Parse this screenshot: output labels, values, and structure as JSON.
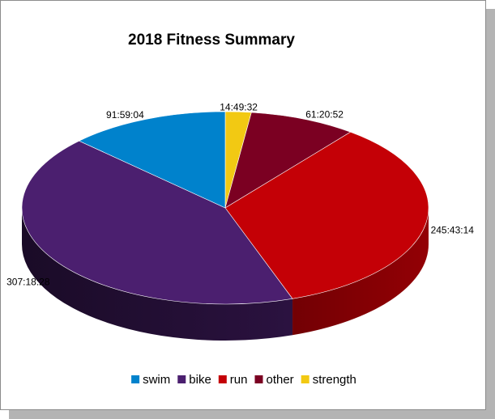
{
  "chart_data": {
    "type": "pie",
    "style": "3d",
    "title": "2018 Fitness Summary",
    "start_angle_deg": -90,
    "direction": "clockwise",
    "slices": [
      {
        "name": "strength",
        "label": "14:49:32",
        "hours": 14.826,
        "color": "#F2C913"
      },
      {
        "name": "other",
        "label": "61:20:52",
        "hours": 61.348,
        "color": "#7B0022"
      },
      {
        "name": "run",
        "label": "245:43:14",
        "hours": 245.721,
        "color": "#C40006"
      },
      {
        "name": "bike",
        "label": "307:18:28",
        "hours": 307.308,
        "color": "#4B1F6F"
      },
      {
        "name": "swim",
        "label": "91:59:04",
        "hours": 91.984,
        "color": "#0082CC"
      }
    ],
    "legend": {
      "position": "bottom",
      "items": [
        "swim",
        "bike",
        "run",
        "other",
        "strength"
      ]
    }
  }
}
